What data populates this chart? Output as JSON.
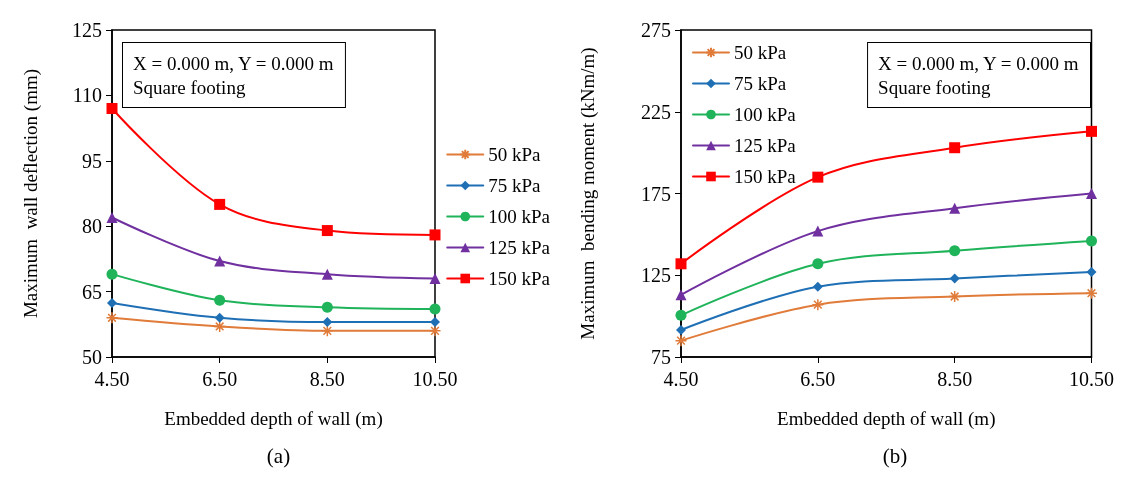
{
  "chart_data": [
    {
      "type": "line",
      "title": "(a)",
      "xlabel": "Embedded depth of wall (m)",
      "ylabel": "Maximum  wall deflection (mm)",
      "annotations": [
        "X = 0.000 m, Y = 0.000 m\nSquare footing"
      ],
      "x": [
        4.5,
        6.5,
        8.5,
        10.5
      ],
      "xlim": [
        4.5,
        10.5
      ],
      "xticks": [
        {
          "value": 4.5,
          "label": "4.50"
        },
        {
          "value": 6.5,
          "label": "6.50"
        },
        {
          "value": 8.5,
          "label": "8.50"
        },
        {
          "value": 10.5,
          "label": "10.50"
        }
      ],
      "ylim": [
        50,
        125
      ],
      "yticks": [
        50,
        65,
        80,
        95,
        110,
        125
      ],
      "grid": false,
      "legend": "right",
      "line_style": "solid",
      "series": [
        {
          "name": "50 kPa",
          "color": "#e07b39",
          "marker": "cross",
          "values": [
            59,
            57,
            56,
            56
          ]
        },
        {
          "name": "75 kPa",
          "color": "#1f6fb5",
          "marker": "diamond",
          "values": [
            62.4,
            59,
            58,
            58
          ]
        },
        {
          "name": "100 kPa",
          "color": "#1fb35a",
          "marker": "circle",
          "values": [
            69,
            63,
            61.4,
            61
          ]
        },
        {
          "name": "125 kPa",
          "color": "#7030a0",
          "marker": "triangle",
          "values": [
            82,
            72,
            69,
            68
          ]
        },
        {
          "name": "150 kPa",
          "color": "#ff0000",
          "marker": "square",
          "values": [
            107,
            85,
            79,
            78
          ]
        }
      ]
    },
    {
      "type": "line",
      "title": "(b)",
      "xlabel": "Embedded depth of wall (m)",
      "ylabel": "Maximum  bending moment (kNm/m)",
      "annotations": [
        "X = 0.000 m, Y = 0.000 m\nSquare footing"
      ],
      "x": [
        4.5,
        6.5,
        8.5,
        10.5
      ],
      "xlim": [
        4.5,
        10.5
      ],
      "xticks": [
        {
          "value": 4.5,
          "label": "4.50"
        },
        {
          "value": 6.5,
          "label": "6.50"
        },
        {
          "value": 8.5,
          "label": "8.50"
        },
        {
          "value": 10.5,
          "label": "10.50"
        }
      ],
      "ylim": [
        75,
        275
      ],
      "yticks": [
        75,
        125,
        175,
        225,
        275
      ],
      "grid": false,
      "legend": "top left",
      "line_style": "solid",
      "series": [
        {
          "name": "50 kPa",
          "color": "#e07b39",
          "marker": "cross",
          "values": [
            85,
            107,
            112,
            114
          ]
        },
        {
          "name": "75 kPa",
          "color": "#1f6fb5",
          "marker": "diamond",
          "values": [
            91.5,
            118,
            123,
            127
          ]
        },
        {
          "name": "100 kPa",
          "color": "#1fb35a",
          "marker": "circle",
          "values": [
            100.5,
            132,
            140,
            146
          ]
        },
        {
          "name": "125 kPa",
          "color": "#7030a0",
          "marker": "triangle",
          "values": [
            113,
            152,
            166,
            175
          ]
        },
        {
          "name": "150 kPa",
          "color": "#ff0000",
          "marker": "square",
          "values": [
            132,
            185,
            203,
            213
          ]
        }
      ]
    }
  ]
}
